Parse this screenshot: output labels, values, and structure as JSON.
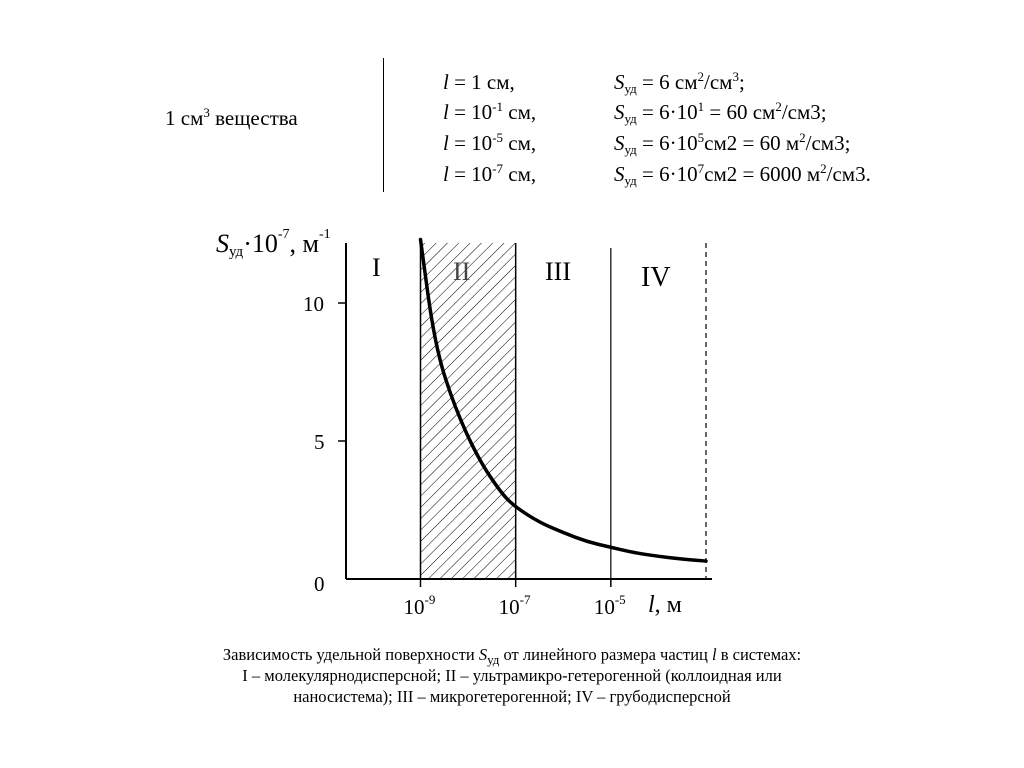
{
  "header": {
    "left_label_prefix": "1 см",
    "left_label_exp": "3",
    "left_label_suffix": " вещества",
    "rows": [
      {
        "l_sym": "l",
        "l_eq": " = 1 см,",
        "l_exp": "",
        "l_after": "",
        "s_sym": "S",
        "s_sub": "уд",
        "s_eq": " = 6 см",
        "s_exp1": "2",
        "s_mid": "/см",
        "s_exp2": "3",
        "s_end": ";"
      },
      {
        "l_sym": "l",
        "l_eq": " = 10",
        "l_exp": "-1",
        "l_after": " см,",
        "s_sym": "S",
        "s_sub": "уд",
        "s_eq": " = 6·10",
        "s_exp1": "1",
        "s_mid": " = 60 см",
        "s_exp2": "2",
        "s_end": "/см3;"
      },
      {
        "l_sym": "l",
        "l_eq": " = 10",
        "l_exp": "-5",
        "l_after": " см,",
        "s_sym": "S",
        "s_sub": "уд",
        "s_eq": " = 6·10",
        "s_exp1": "5",
        "s_mid": "см2 = 60 м",
        "s_exp2": "2",
        "s_end": "/см3;"
      },
      {
        "l_sym": "l",
        "l_eq": " = 10",
        "l_exp": "-7",
        "l_after": " см,",
        "s_sym": "S",
        "s_sub": "уд",
        "s_eq": " = 6·10",
        "s_exp1": "7",
        "s_mid": "см2 = 6000 м",
        "s_exp2": "2",
        "s_end": "/см3."
      }
    ]
  },
  "chart_data": {
    "type": "line",
    "xlabel": "l, м",
    "ylabel_text": "Sуд·10-7, м-1",
    "x_ticks": [
      {
        "base": "10",
        "exp": "-9",
        "log10": -9
      },
      {
        "base": "10",
        "exp": "-7",
        "log10": -7
      },
      {
        "base": "10",
        "exp": "-5",
        "log10": -5
      }
    ],
    "y_ticks": [
      0,
      5,
      10
    ],
    "ylim": [
      0,
      12.4
    ],
    "regions": [
      "I",
      "II",
      "III",
      "IV"
    ],
    "region_bounds_log10": [
      -9,
      -7,
      -5,
      -3
    ],
    "hatched_region": "II",
    "series": [
      {
        "x_log10": [
          -9.0,
          -8.7,
          -8.3,
          -7.8,
          -7.3,
          -7.0,
          -6.5,
          -6.0,
          -5.5,
          -5.0,
          -4.5,
          -4.0,
          -3.5,
          -3.0
        ],
        "values": [
          12.3,
          8.5,
          6.3,
          4.4,
          3.1,
          2.6,
          2.05,
          1.68,
          1.35,
          1.15,
          0.95,
          0.82,
          0.72,
          0.65
        ]
      }
    ]
  },
  "caption": {
    "line1_a": "Зависимость удельной поверхности ",
    "line1_s": "S",
    "line1_sub": "уд",
    "line1_b": " от линейного размера частиц ",
    "line1_l": "l",
    "line1_c": " в системах:",
    "line2": "I – молекулярнодисперсной; II – ультрамикро-гетерогенной (коллоидная или",
    "line3": "наносистема); III – микрогетерогенной; IV – грубодисперсной"
  }
}
